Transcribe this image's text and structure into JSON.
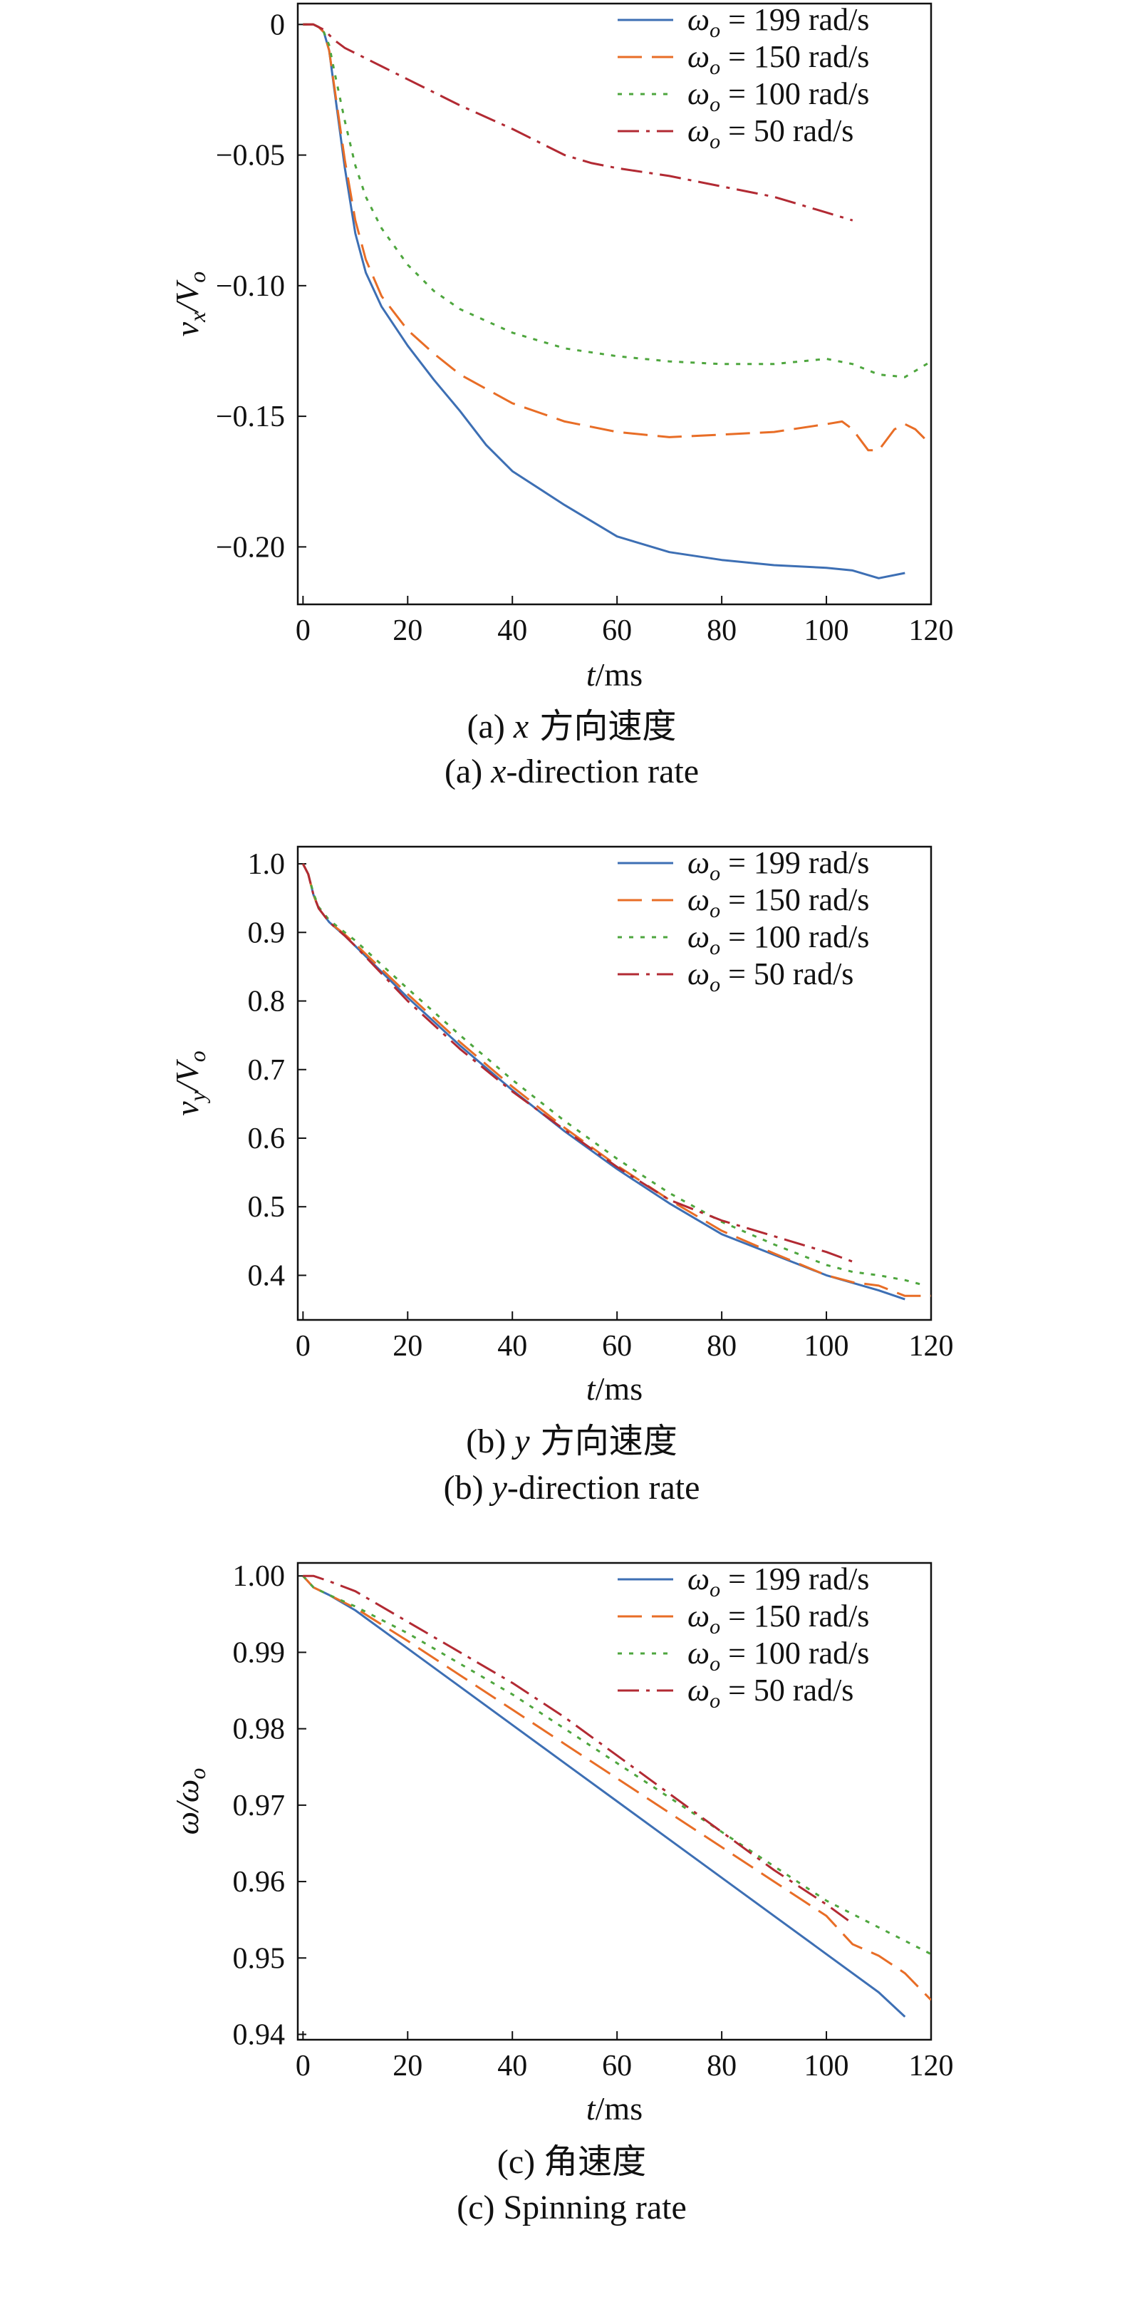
{
  "panels": [
    {
      "ylabel": {
        "main": "v",
        "sub1": "x",
        "slash": "/V",
        "sub2": "o"
      },
      "xlabel": {
        "main": "t",
        "rest": "/ms"
      },
      "caption_cn": {
        "prefix": "(a) ",
        "var": "x",
        "rest": " 方向速度"
      },
      "caption_en": {
        "prefix": "(a) ",
        "var": "x",
        "rest": "-direction rate"
      }
    },
    {
      "ylabel": {
        "main": "v",
        "sub1": "y",
        "slash": "/V",
        "sub2": "o"
      },
      "xlabel": {
        "main": "t",
        "rest": "/ms"
      },
      "caption_cn": {
        "prefix": "(b) ",
        "var": "y",
        "rest": " 方向速度"
      },
      "caption_en": {
        "prefix": "(b) ",
        "var": "y",
        "rest": "-direction rate"
      }
    },
    {
      "ylabel": {
        "main": "ω/ω",
        "sub1": "",
        "slash": "",
        "sub2": "o"
      },
      "xlabel": {
        "main": "t",
        "rest": "/ms"
      },
      "caption_cn": {
        "prefix": "(c) ",
        "var": "",
        "rest": "角速度"
      },
      "caption_en": {
        "prefix": "(c) ",
        "var": "",
        "rest": "Spinning rate"
      }
    }
  ],
  "chart_data": [
    {
      "type": "line",
      "xlim": [
        -1,
        120
      ],
      "ylim": [
        -0.222,
        0.008
      ],
      "xticks": [
        0,
        20,
        40,
        60,
        80,
        100,
        120
      ],
      "yticks": [
        0,
        -0.05,
        -0.1,
        -0.15,
        -0.2
      ],
      "ytick_labels": [
        "0",
        "−0.05",
        "−0.10",
        "−0.15",
        "−0.20"
      ],
      "legend_position": "top-right",
      "series": [
        {
          "name": "ω_o = 199 rad/s",
          "color": "#3d6fb4",
          "dash": "solid",
          "x": [
            0,
            2,
            3,
            4,
            5,
            6,
            8,
            10,
            12,
            15,
            20,
            25,
            30,
            35,
            40,
            50,
            60,
            70,
            80,
            90,
            100,
            105,
            110,
            115
          ],
          "y": [
            0,
            0,
            -0.001,
            -0.003,
            -0.01,
            -0.025,
            -0.055,
            -0.08,
            -0.095,
            -0.108,
            -0.123,
            -0.136,
            -0.148,
            -0.161,
            -0.171,
            -0.184,
            -0.196,
            -0.202,
            -0.205,
            -0.207,
            -0.208,
            -0.209,
            -0.212,
            -0.21
          ]
        },
        {
          "name": "ω_o = 150 rad/s",
          "color": "#e86d26",
          "dash": "long",
          "x": [
            0,
            2,
            3,
            4,
            5,
            6,
            8,
            10,
            12,
            15,
            20,
            25,
            30,
            40,
            50,
            60,
            70,
            80,
            90,
            100,
            103,
            105,
            108,
            110,
            113,
            115,
            117,
            120
          ],
          "y": [
            0,
            0,
            -0.001,
            -0.003,
            -0.01,
            -0.024,
            -0.052,
            -0.075,
            -0.09,
            -0.104,
            -0.117,
            -0.126,
            -0.134,
            -0.145,
            -0.152,
            -0.156,
            -0.158,
            -0.157,
            -0.156,
            -0.153,
            -0.152,
            -0.155,
            -0.163,
            -0.163,
            -0.155,
            -0.153,
            -0.155,
            -0.161
          ]
        },
        {
          "name": "ω_o = 100 rad/s",
          "color": "#4ea63e",
          "dash": "dot",
          "x": [
            0,
            2,
            3,
            4,
            5,
            6,
            8,
            10,
            12,
            15,
            20,
            25,
            30,
            40,
            50,
            60,
            70,
            80,
            90,
            100,
            105,
            110,
            115,
            120
          ],
          "y": [
            0,
            0,
            -0.001,
            -0.003,
            -0.008,
            -0.018,
            -0.037,
            -0.054,
            -0.066,
            -0.078,
            -0.092,
            -0.102,
            -0.109,
            -0.118,
            -0.124,
            -0.127,
            -0.129,
            -0.13,
            -0.13,
            -0.128,
            -0.13,
            -0.134,
            -0.135,
            -0.129
          ]
        },
        {
          "name": "ω_o = 50 rad/s",
          "color": "#b22a33",
          "dash": "dashdot",
          "x": [
            0,
            2,
            3,
            4,
            5,
            6,
            8,
            10,
            15,
            20,
            30,
            40,
            50,
            55,
            60,
            70,
            80,
            90,
            100,
            105
          ],
          "y": [
            0,
            0,
            -0.001,
            -0.002,
            -0.004,
            -0.006,
            -0.009,
            -0.011,
            -0.016,
            -0.021,
            -0.031,
            -0.04,
            -0.05,
            -0.053,
            -0.055,
            -0.058,
            -0.062,
            -0.066,
            -0.072,
            -0.075
          ]
        }
      ]
    },
    {
      "type": "line",
      "xlim": [
        -1,
        120
      ],
      "ylim": [
        0.335,
        1.025
      ],
      "xticks": [
        0,
        20,
        40,
        60,
        80,
        100,
        120
      ],
      "yticks": [
        1.0,
        0.9,
        0.8,
        0.7,
        0.6,
        0.5,
        0.4
      ],
      "ytick_labels": [
        "1.0",
        "0.9",
        "0.8",
        "0.7",
        "0.6",
        "0.5",
        "0.4"
      ],
      "legend_position": "top-right",
      "series": [
        {
          "name": "ω_o = 199 rad/s",
          "color": "#3d6fb4",
          "dash": "solid",
          "x": [
            0,
            1,
            2,
            3,
            5,
            8,
            10,
            20,
            30,
            40,
            50,
            60,
            70,
            80,
            90,
            100,
            110,
            115
          ],
          "y": [
            1.0,
            0.985,
            0.955,
            0.935,
            0.915,
            0.895,
            0.88,
            0.805,
            0.735,
            0.67,
            0.61,
            0.555,
            0.505,
            0.46,
            0.43,
            0.4,
            0.378,
            0.365
          ]
        },
        {
          "name": "ω_o = 150 rad/s",
          "color": "#e86d26",
          "dash": "long",
          "x": [
            0,
            1,
            2,
            3,
            5,
            8,
            10,
            20,
            30,
            40,
            50,
            60,
            70,
            80,
            90,
            100,
            105,
            110,
            115,
            120
          ],
          "y": [
            1.0,
            0.985,
            0.955,
            0.935,
            0.915,
            0.897,
            0.883,
            0.81,
            0.74,
            0.675,
            0.615,
            0.56,
            0.51,
            0.465,
            0.432,
            0.4,
            0.39,
            0.385,
            0.37,
            0.37
          ]
        },
        {
          "name": "ω_o = 100 rad/s",
          "color": "#4ea63e",
          "dash": "dot",
          "x": [
            0,
            1,
            2,
            3,
            5,
            8,
            10,
            20,
            30,
            40,
            50,
            60,
            70,
            80,
            90,
            100,
            105,
            110,
            115,
            119
          ],
          "y": [
            1.0,
            0.985,
            0.957,
            0.937,
            0.918,
            0.9,
            0.888,
            0.818,
            0.75,
            0.685,
            0.625,
            0.57,
            0.52,
            0.478,
            0.445,
            0.415,
            0.405,
            0.4,
            0.393,
            0.385
          ]
        },
        {
          "name": "ω_o = 50 rad/s",
          "color": "#b22a33",
          "dash": "dashdot",
          "x": [
            0,
            1,
            2,
            3,
            5,
            8,
            10,
            20,
            30,
            40,
            50,
            60,
            70,
            80,
            90,
            100,
            105
          ],
          "y": [
            1.0,
            0.985,
            0.955,
            0.935,
            0.915,
            0.895,
            0.88,
            0.8,
            0.73,
            0.668,
            0.612,
            0.558,
            0.51,
            0.48,
            0.457,
            0.434,
            0.42
          ]
        }
      ]
    },
    {
      "type": "line",
      "xlim": [
        -1,
        120
      ],
      "ylim": [
        0.9393,
        1.0017
      ],
      "xticks": [
        0,
        20,
        40,
        60,
        80,
        100,
        120
      ],
      "yticks": [
        1.0,
        0.99,
        0.98,
        0.97,
        0.96,
        0.95,
        0.94
      ],
      "ytick_labels": [
        "1.00",
        "0.99",
        "0.98",
        "0.97",
        "0.96",
        "0.95",
        "0.94"
      ],
      "legend_position": "top-right",
      "series": [
        {
          "name": "ω_o = 199 rad/s",
          "color": "#3d6fb4",
          "dash": "solid",
          "x": [
            0,
            2,
            5,
            10,
            20,
            30,
            40,
            50,
            60,
            70,
            80,
            90,
            100,
            110,
            115
          ],
          "y": [
            1.0,
            0.9985,
            0.9975,
            0.9955,
            0.9905,
            0.9855,
            0.9805,
            0.9755,
            0.9705,
            0.9655,
            0.9605,
            0.9555,
            0.9505,
            0.9455,
            0.9423
          ]
        },
        {
          "name": "ω_o = 150 rad/s",
          "color": "#e86d26",
          "dash": "long",
          "x": [
            0,
            2,
            5,
            10,
            20,
            30,
            40,
            50,
            60,
            70,
            80,
            90,
            100,
            105,
            110,
            115,
            120
          ],
          "y": [
            1.0,
            0.9985,
            0.9975,
            0.9958,
            0.9915,
            0.987,
            0.9825,
            0.978,
            0.9735,
            0.969,
            0.9645,
            0.96,
            0.9555,
            0.9518,
            0.9503,
            0.948,
            0.9445
          ]
        },
        {
          "name": "ω_o = 100 rad/s",
          "color": "#4ea63e",
          "dash": "dot",
          "x": [
            0,
            2,
            5,
            10,
            20,
            30,
            40,
            50,
            60,
            70,
            80,
            90,
            100,
            110,
            120
          ],
          "y": [
            1.0,
            0.9985,
            0.9975,
            0.996,
            0.9925,
            0.9885,
            0.9845,
            0.98,
            0.9755,
            0.971,
            0.9665,
            0.962,
            0.9575,
            0.954,
            0.9505
          ]
        },
        {
          "name": "ω_o = 50 rad/s",
          "color": "#b22a33",
          "dash": "dashdot",
          "x": [
            0,
            2,
            5,
            10,
            20,
            30,
            40,
            50,
            60,
            70,
            80,
            90,
            100,
            105
          ],
          "y": [
            1.0,
            1.0,
            0.9993,
            0.998,
            0.994,
            0.99,
            0.986,
            0.9815,
            0.9765,
            0.9715,
            0.9665,
            0.9615,
            0.957,
            0.9545
          ]
        }
      ]
    }
  ]
}
